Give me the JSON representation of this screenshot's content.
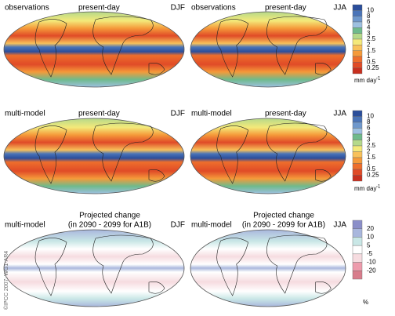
{
  "rows": [
    {
      "panels": [
        {
          "left": "observations",
          "center": "present-day",
          "season": "DJF"
        },
        {
          "left": "observations",
          "center": "present-day",
          "season": "JJA"
        }
      ],
      "colorbar": {
        "ticks": [
          "10",
          "8",
          "6",
          "4",
          "3",
          "2.5",
          "2",
          "1.5",
          "1",
          "0.5",
          "0.25"
        ],
        "unit": "mm day",
        "unit_sup": "-1",
        "colors": [
          "#2b4e9b",
          "#4a74b8",
          "#6f98cc",
          "#9dc0e0",
          "#6fba8b",
          "#b5d98a",
          "#f4e97a",
          "#f8c15a",
          "#f59a3a",
          "#ee6e2c",
          "#e04b27",
          "#c7301f"
        ]
      }
    },
    {
      "panels": [
        {
          "left": "multi-model",
          "center": "present-day",
          "season": "DJF"
        },
        {
          "left": "multi-model",
          "center": "present-day",
          "season": "JJA"
        }
      ],
      "colorbar": {
        "ticks": [
          "10",
          "8",
          "6",
          "4",
          "3",
          "2.5",
          "2",
          "1.5",
          "1",
          "0.5",
          "0.25"
        ],
        "unit": "mm day",
        "unit_sup": "-1",
        "colors": [
          "#2b4e9b",
          "#4a74b8",
          "#6f98cc",
          "#9dc0e0",
          "#6fba8b",
          "#b5d98a",
          "#f4e97a",
          "#f8c15a",
          "#f59a3a",
          "#ee6e2c",
          "#e04b27",
          "#c7301f"
        ]
      }
    },
    {
      "panels": [
        {
          "left": "multi-model",
          "center": "Projected change",
          "center2": "(in 2090 - 2099 for A1B)",
          "season": "DJF"
        },
        {
          "left": "multi-model",
          "center": "Projected change",
          "center2": "(in 2090 - 2099 for A1B)",
          "season": "JJA"
        }
      ],
      "colorbar": {
        "ticks": [
          "20",
          "10",
          "5",
          "-5",
          "-10",
          "-20"
        ],
        "unit": "%",
        "colors": [
          "#8b8fc9",
          "#a9b7dd",
          "#c9e7e6",
          "#ffffff",
          "#f6dce0",
          "#ed9bac",
          "#d87d8c"
        ]
      }
    }
  ],
  "credit": "©IPCC 2007: WG1-AR4"
}
